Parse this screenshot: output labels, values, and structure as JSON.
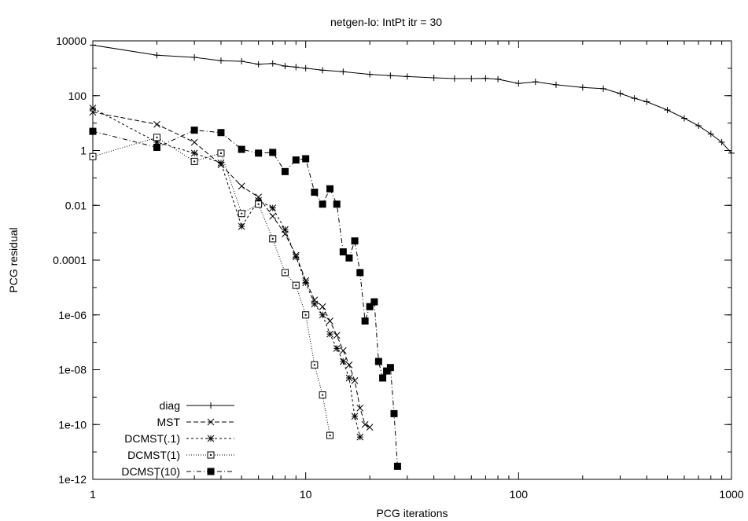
{
  "chart_data": {
    "type": "line",
    "title": "netgen-lo: IntPt itr = 30",
    "xlabel": "PCG iterations",
    "ylabel": "PCG residual",
    "xscale": "log",
    "yscale": "log",
    "xlim": [
      1,
      1000
    ],
    "ylim": [
      1e-12,
      10000
    ],
    "x_ticks": [
      1,
      10,
      100,
      1000
    ],
    "x_tick_labels": [
      "1",
      "10",
      "100",
      "1000"
    ],
    "y_ticks": [
      1e-12,
      1e-10,
      1e-08,
      1e-06,
      0.0001,
      0.01,
      1,
      100,
      10000
    ],
    "y_tick_labels": [
      "1e-12",
      "1e-10",
      "1e-08",
      "1e-06",
      "0.0001",
      "0.01",
      "1",
      "100",
      "10000"
    ],
    "grid": false,
    "legend_position": "bottom-left",
    "series": [
      {
        "name": "diag",
        "marker": "plus",
        "dash": "solid",
        "x": [
          1,
          2,
          3,
          4,
          5,
          6,
          7,
          8,
          9,
          10,
          12,
          15,
          20,
          25,
          30,
          40,
          50,
          60,
          70,
          80,
          100,
          120,
          150,
          200,
          250,
          300,
          350,
          400,
          500,
          600,
          700,
          800,
          900,
          1000
        ],
        "y": [
          7000,
          3000,
          2500,
          1900,
          1800,
          1400,
          1500,
          1200,
          1100,
          1000,
          850,
          750,
          600,
          540,
          500,
          450,
          420,
          420,
          430,
          400,
          280,
          320,
          250,
          200,
          180,
          120,
          80,
          60,
          30,
          15,
          8,
          4,
          2,
          0.8
        ]
      },
      {
        "name": "MST",
        "marker": "x",
        "dash": "dashed",
        "x": [
          1,
          2,
          3,
          4,
          5,
          6,
          7,
          8,
          9,
          10,
          11,
          12,
          13,
          14,
          15,
          16,
          17,
          18,
          19,
          20
        ],
        "y": [
          25,
          9,
          2,
          0.3,
          0.05,
          0.02,
          0.004,
          0.0009,
          0.00015,
          1.8e-05,
          3.5e-06,
          2e-06,
          6e-07,
          1.8e-07,
          5e-08,
          1.5e-08,
          4e-09,
          4e-10,
          1e-10,
          8e-11
        ]
      },
      {
        "name": "DCMST(.1)",
        "marker": "asterisk",
        "dash": "short-dash",
        "x": [
          1,
          2,
          3,
          4,
          5,
          6,
          7,
          8,
          9,
          10,
          11,
          12,
          13,
          14,
          15,
          16,
          17,
          18
        ],
        "y": [
          35,
          2,
          0.8,
          0.35,
          0.0017,
          0.015,
          0.008,
          0.0013,
          0.00013,
          1.5e-05,
          2.5e-06,
          1e-06,
          2e-07,
          6e-08,
          2e-08,
          5e-09,
          2e-10,
          3.5e-11
        ]
      },
      {
        "name": "DCMST(1)",
        "marker": "square",
        "dash": "dotted",
        "x": [
          1,
          2,
          3,
          4,
          5,
          6,
          7,
          8,
          9,
          10,
          11,
          12,
          13
        ],
        "y": [
          0.6,
          3,
          0.4,
          0.8,
          0.005,
          0.011,
          0.0006,
          3.5e-05,
          1.2e-05,
          1e-06,
          1.5e-08,
          1.2e-09,
          4e-11
        ]
      },
      {
        "name": "DCMST(10)",
        "marker": "filled-square",
        "dash": "dash-dot",
        "x": [
          1,
          2,
          3,
          4,
          5,
          6,
          7,
          8,
          9,
          10,
          11,
          12,
          13,
          14,
          15,
          16,
          17,
          18,
          19,
          20,
          21,
          22,
          23,
          24,
          25,
          26,
          27
        ],
        "y": [
          5,
          1.3,
          5.5,
          4.5,
          1.1,
          0.8,
          0.85,
          0.17,
          0.45,
          0.5,
          0.03,
          0.011,
          0.04,
          0.011,
          0.0002,
          0.00012,
          0.0005,
          3.5e-05,
          6e-07,
          2e-06,
          3e-06,
          2e-08,
          5e-09,
          9e-09,
          1.2e-08,
          2.5e-10,
          3e-12
        ]
      }
    ]
  }
}
